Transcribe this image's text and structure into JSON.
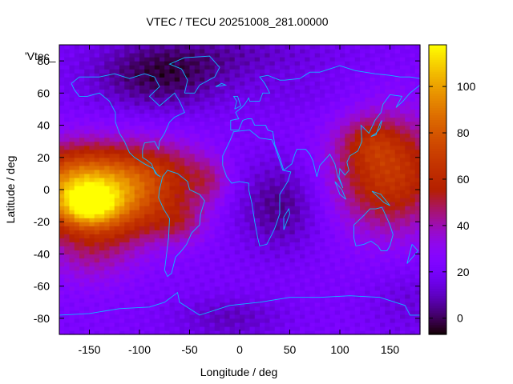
{
  "chart_data": {
    "type": "heatmap",
    "title": "VTEC / TECU 20251008_281.00000",
    "xlabel": "Longitude / deg",
    "ylabel": "Latitude / deg",
    "key_label": "'Vtec_",
    "xlim": [
      -180,
      180
    ],
    "ylim": [
      -90,
      90
    ],
    "x_ticks": [
      -150,
      -100,
      -50,
      0,
      50,
      100,
      150
    ],
    "y_ticks": [
      -80,
      -60,
      -40,
      -20,
      0,
      20,
      40,
      60,
      80
    ],
    "colorbar": {
      "range": [
        -7,
        118
      ],
      "ticks": [
        0,
        20,
        40,
        60,
        80,
        100
      ],
      "palette": "gnuplot"
    },
    "grid": false,
    "cell_size_deg": {
      "lon": 5,
      "lat": 2.5
    },
    "approx_field_sources": [
      {
        "lon": -160,
        "lat": 0,
        "value": 80,
        "sigma_lon": 40,
        "sigma_lat": 18
      },
      {
        "lon": -150,
        "lat": -10,
        "value": 35,
        "sigma_lon": 18,
        "sigma_lat": 8
      },
      {
        "lon": -110,
        "lat": -5,
        "value": 30,
        "sigma_lon": 30,
        "sigma_lat": 20
      },
      {
        "lon": -70,
        "lat": 10,
        "value": 25,
        "sigma_lon": 30,
        "sigma_lat": 15
      },
      {
        "lon": -60,
        "lat": -20,
        "value": 20,
        "sigma_lon": 20,
        "sigma_lat": 10
      },
      {
        "lon": -30,
        "lat": 5,
        "value": 15,
        "sigma_lon": 15,
        "sigma_lat": 10
      },
      {
        "lon": -150,
        "lat": -40,
        "value": 15,
        "sigma_lon": 30,
        "sigma_lat": 15
      },
      {
        "lon": 150,
        "lat": 10,
        "value": 45,
        "sigma_lon": 40,
        "sigma_lat": 25
      },
      {
        "lon": 130,
        "lat": 30,
        "value": 15,
        "sigma_lon": 20,
        "sigma_lat": 10
      },
      {
        "lon": 40,
        "lat": -10,
        "value": -18,
        "sigma_lon": 30,
        "sigma_lat": 20
      },
      {
        "lon": -80,
        "lat": 70,
        "value": -22,
        "sigma_lon": 50,
        "sigma_lat": 15
      },
      {
        "lon": 0,
        "lat": 85,
        "value": -10,
        "sigma_lon": 80,
        "sigma_lat": 10
      },
      {
        "lon": 60,
        "lat": 60,
        "value": -5,
        "sigma_lon": 40,
        "sigma_lat": 10
      },
      {
        "lon": -10,
        "lat": -80,
        "value": -12,
        "sigma_lon": 40,
        "sigma_lat": 10
      },
      {
        "lon": 170,
        "lat": -70,
        "value": -8,
        "sigma_lon": 30,
        "sigma_lat": 15
      }
    ],
    "approx_field_base": 22
  }
}
